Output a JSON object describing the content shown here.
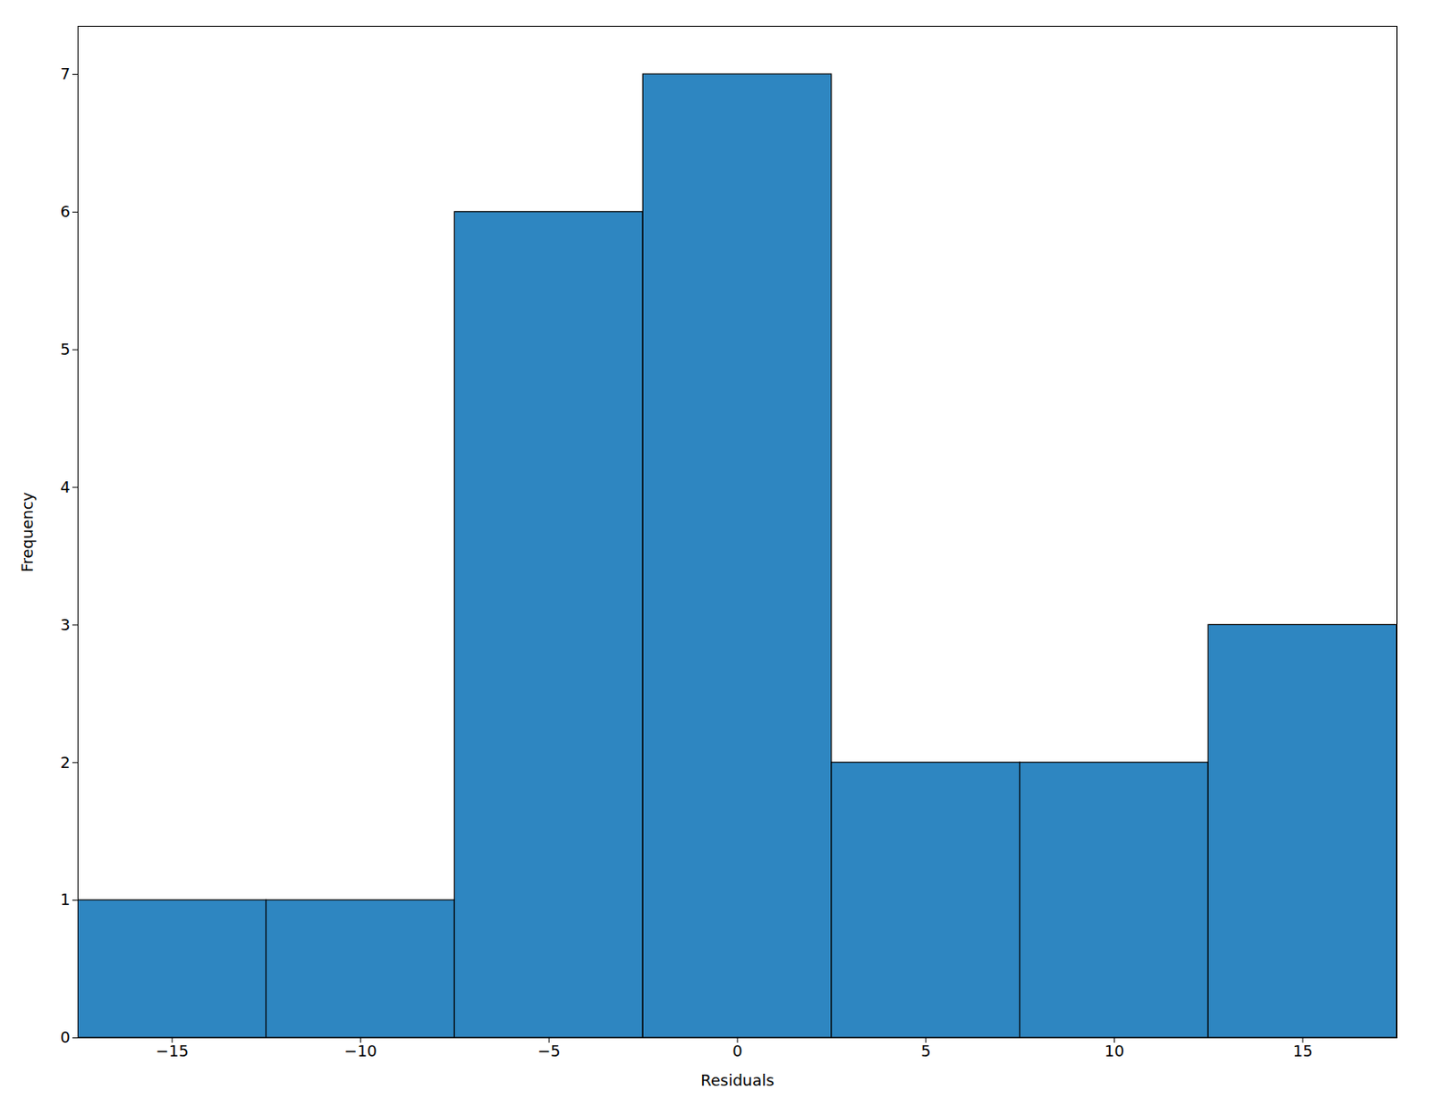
{
  "chart_data": {
    "type": "histogram",
    "xlabel": "Residuals",
    "ylabel": "Frequency",
    "bins": [
      -17.5,
      -12.5,
      -7.5,
      -2.5,
      2.5,
      7.5,
      12.5,
      17.5
    ],
    "values": [
      1,
      1,
      6,
      7,
      2,
      2,
      3
    ],
    "color": "#2e86c1",
    "xlim": [
      -17.5,
      17.5
    ],
    "xticks": [
      -15,
      -10,
      -5,
      0,
      5,
      10,
      15
    ],
    "ylim": [
      0,
      7.35
    ],
    "yticks": [
      0,
      1,
      2,
      3,
      4,
      5,
      6,
      7
    ],
    "grid": false
  }
}
